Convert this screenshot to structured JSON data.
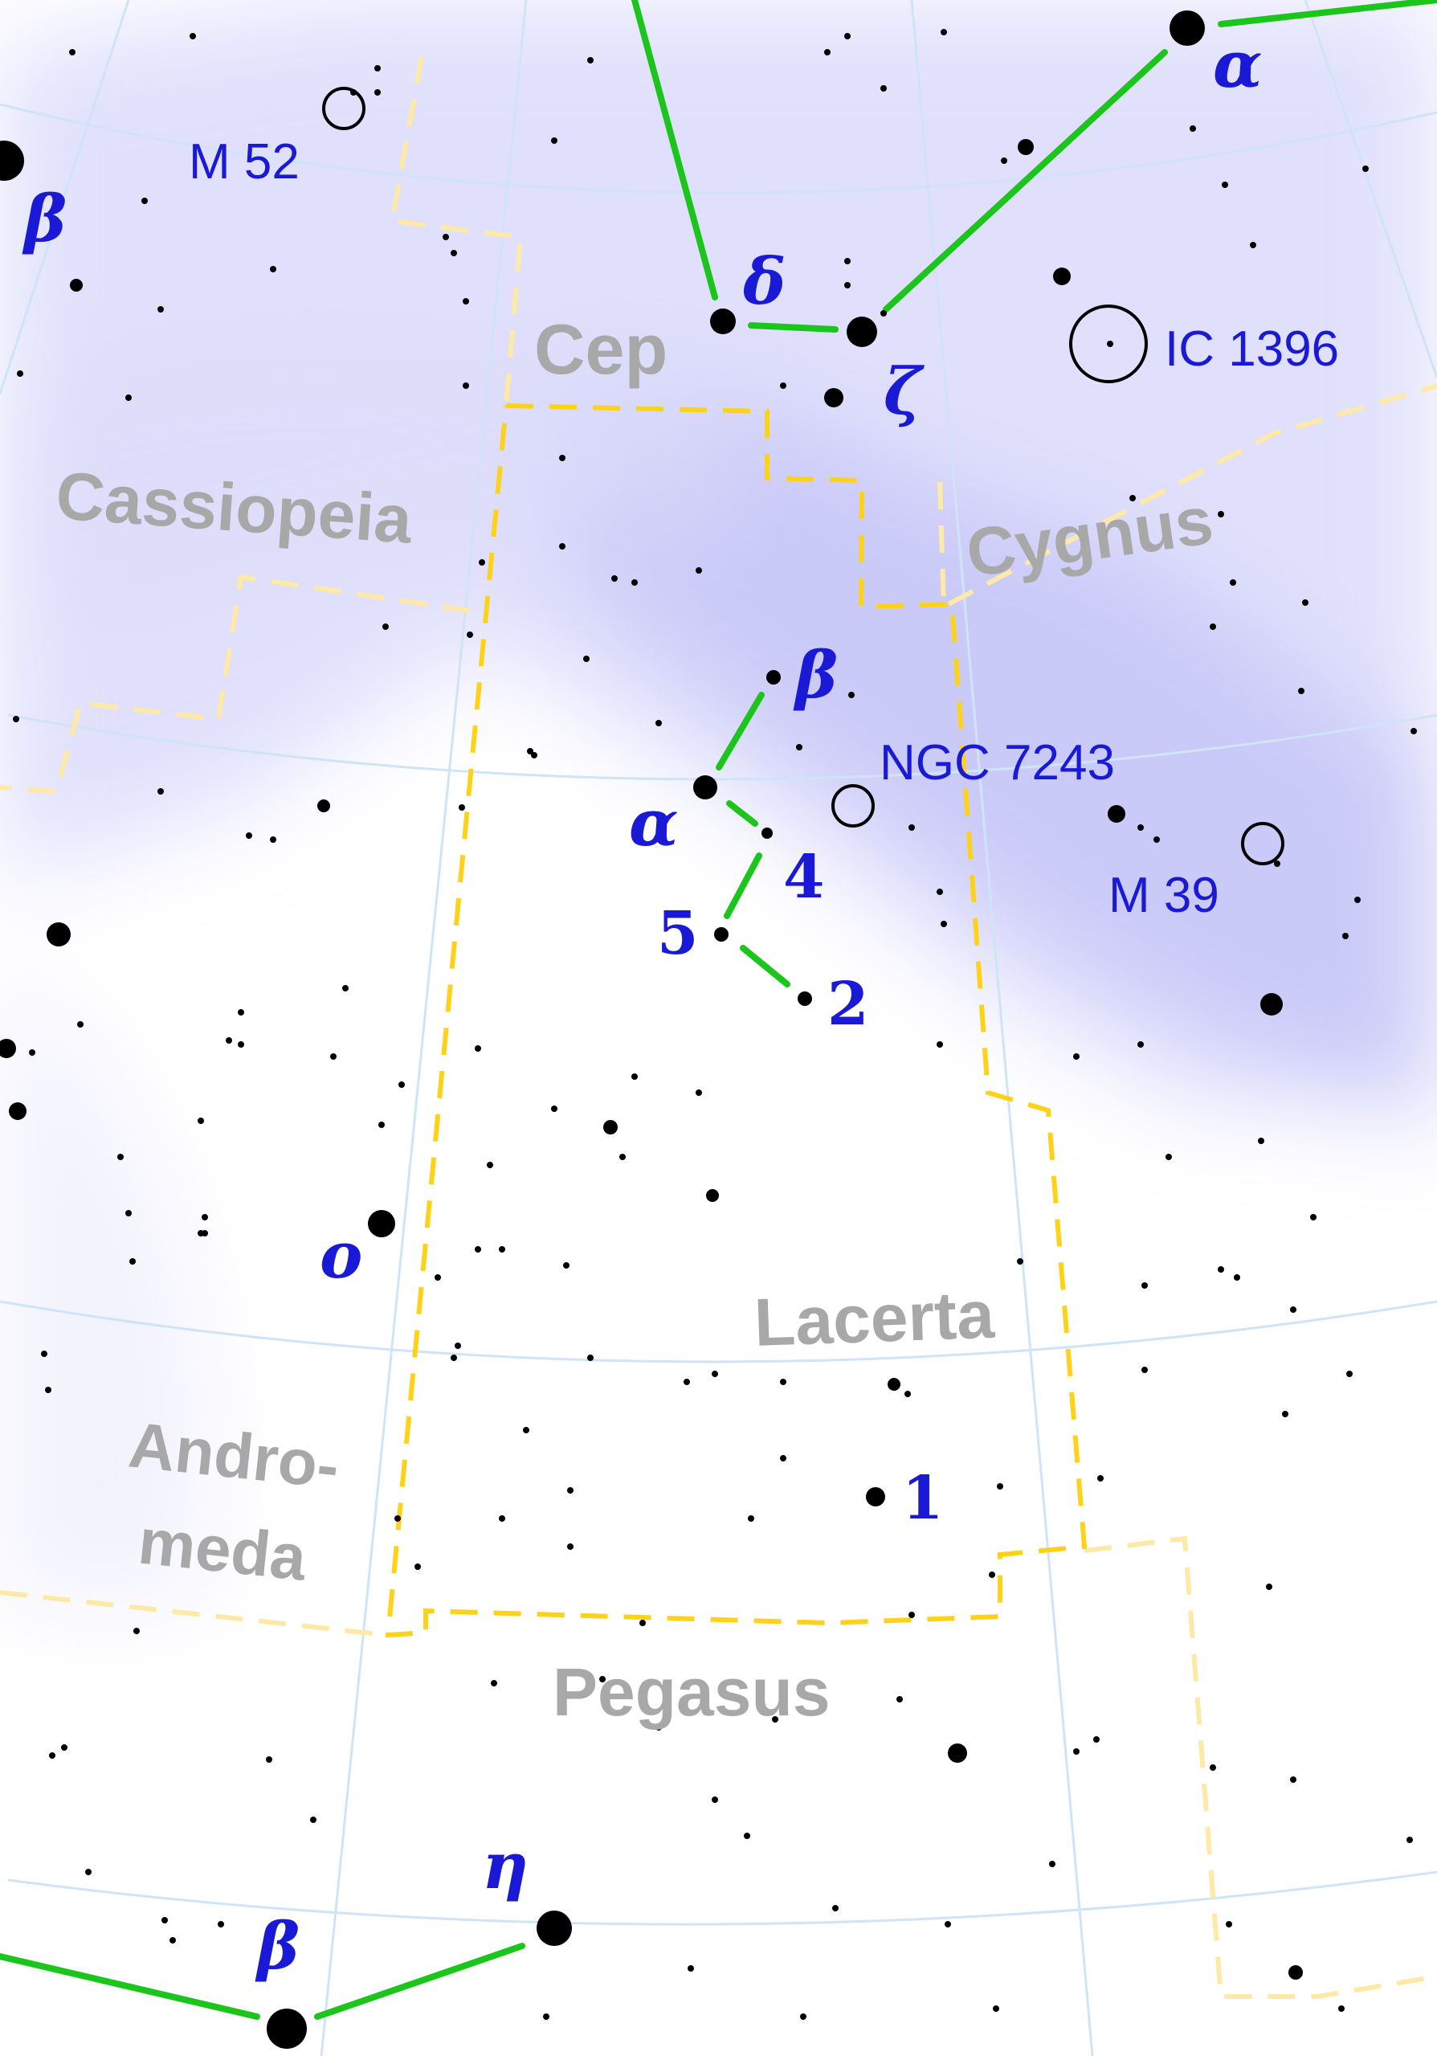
{
  "constellations": {
    "cep": "Cep",
    "cassiopeia": "Cassiopeia",
    "cygnus": "Cygnus",
    "lacerta": "Lacerta",
    "andromeda_1": "Andro-",
    "andromeda_2": "meda",
    "pegasus": "Pegasus"
  },
  "deep_sky": {
    "m52": "M 52",
    "ic1396": "IC 1396",
    "ngc7243": "NGC 7243",
    "m39": "M 39"
  },
  "stars": {
    "cas_beta": "β",
    "cep_alpha": "α",
    "cep_delta": "δ",
    "cep_zeta": "ζ",
    "lac_beta": "β",
    "lac_alpha": "α",
    "lac_4": "4",
    "lac_5": "5",
    "lac_2": "2",
    "lac_1": "1",
    "and_omicron": "o",
    "peg_eta": "η",
    "peg_beta": "β"
  },
  "colors": {
    "constellation_label": "#a8a8a8",
    "object_label": "#1a1ad6",
    "stick_figure": "#1cc51c",
    "lacerta_boundary": "#ffd21a",
    "other_boundary": "#ffe9a6",
    "grid": "#cfe4f6",
    "milky_way": "#dcdcfa"
  },
  "icons": {
    "star": "filled-circle",
    "deep_sky_object": "open-circle"
  }
}
